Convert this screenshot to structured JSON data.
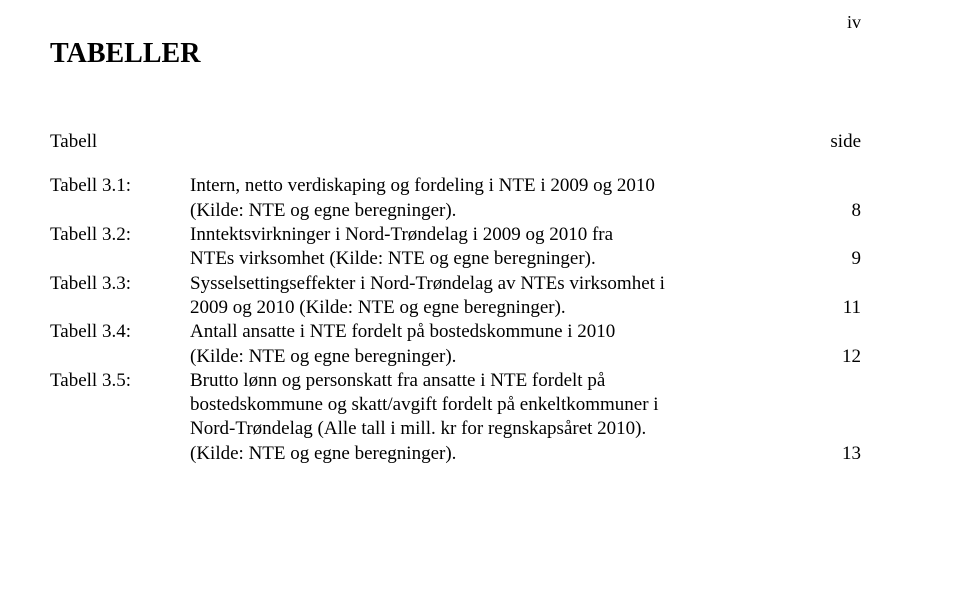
{
  "page_number": "iv",
  "heading": "TABELLER",
  "header": {
    "label": "Tabell",
    "page_col": "side"
  },
  "entries": [
    {
      "label": "Tabell 3.1:",
      "lines": [
        "Intern, netto verdiskaping og fordeling i NTE i 2009 og 2010",
        "(Kilde: NTE og egne beregninger)."
      ],
      "page": "8"
    },
    {
      "label": "Tabell 3.2:",
      "lines": [
        "Inntektsvirkninger i Nord-Trøndelag i 2009 og 2010 fra",
        "NTEs virksomhet (Kilde: NTE og egne beregninger)."
      ],
      "page": "9"
    },
    {
      "label": "Tabell 3.3:",
      "lines": [
        "Sysselsettingseffekter i Nord-Trøndelag av NTEs virksomhet i",
        "2009 og 2010 (Kilde: NTE og egne beregninger)."
      ],
      "page": "11"
    },
    {
      "label": "Tabell 3.4:",
      "lines": [
        "Antall ansatte i NTE fordelt på bostedskommune i 2010",
        "(Kilde: NTE og egne beregninger)."
      ],
      "page": "12"
    },
    {
      "label": "Tabell 3.5:",
      "lines": [
        "Brutto lønn og personskatt fra ansatte i NTE fordelt på",
        "bostedskommune og skatt/avgift fordelt på enkeltkommuner i",
        "Nord-Trøndelag (Alle tall i mill. kr for regnskapsåret 2010).",
        "(Kilde: NTE og egne beregninger)."
      ],
      "page": "13"
    }
  ]
}
